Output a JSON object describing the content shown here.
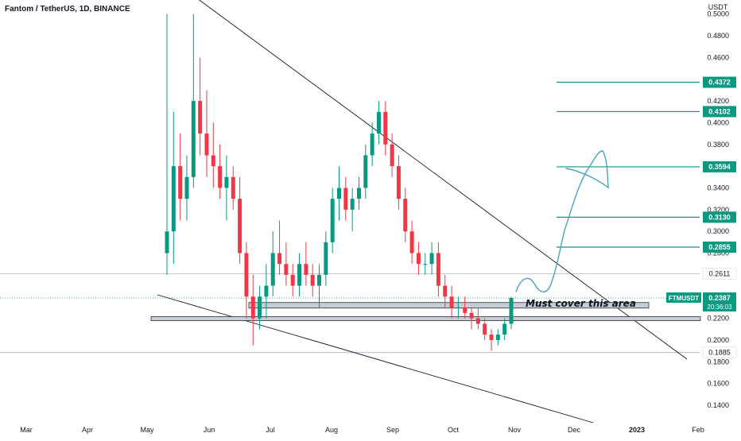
{
  "chart_data": {
    "type": "candlestick",
    "title": "Fantom / TetherUS, 1D, BINANCE",
    "currency": "USDT",
    "y_ticks": [
      "0.5000",
      "0.4800",
      "0.4600",
      "0.4200",
      "0.4000",
      "0.3800",
      "0.3400",
      "0.3200",
      "0.3000",
      "0.2800",
      "0.2200",
      "0.2000",
      "0.1800",
      "0.1600",
      "0.1400"
    ],
    "x_labels": [
      "Mar",
      "Apr",
      "May",
      "Jun",
      "Jul",
      "Aug",
      "Sep",
      "Oct",
      "Nov",
      "Dec",
      "2023",
      "Feb"
    ],
    "grid": false,
    "candles": [
      [
        0.28,
        0.5,
        0.26,
        0.3
      ],
      [
        0.3,
        0.41,
        0.27,
        0.36
      ],
      [
        0.36,
        0.39,
        0.31,
        0.33
      ],
      [
        0.33,
        0.37,
        0.31,
        0.35
      ],
      [
        0.35,
        0.5,
        0.34,
        0.42
      ],
      [
        0.42,
        0.46,
        0.37,
        0.39
      ],
      [
        0.39,
        0.43,
        0.35,
        0.37
      ],
      [
        0.37,
        0.4,
        0.34,
        0.36
      ],
      [
        0.36,
        0.38,
        0.33,
        0.34
      ],
      [
        0.34,
        0.37,
        0.31,
        0.35
      ],
      [
        0.35,
        0.36,
        0.32,
        0.33
      ],
      [
        0.33,
        0.35,
        0.27,
        0.28
      ],
      [
        0.28,
        0.29,
        0.22,
        0.24
      ],
      [
        0.24,
        0.26,
        0.195,
        0.22
      ],
      [
        0.22,
        0.25,
        0.21,
        0.24
      ],
      [
        0.24,
        0.27,
        0.22,
        0.25
      ],
      [
        0.25,
        0.3,
        0.24,
        0.28
      ],
      [
        0.28,
        0.31,
        0.26,
        0.27
      ],
      [
        0.27,
        0.29,
        0.25,
        0.26
      ],
      [
        0.26,
        0.27,
        0.24,
        0.25
      ],
      [
        0.25,
        0.28,
        0.24,
        0.27
      ],
      [
        0.27,
        0.29,
        0.25,
        0.26
      ],
      [
        0.26,
        0.27,
        0.24,
        0.25
      ],
      [
        0.25,
        0.27,
        0.23,
        0.26
      ],
      [
        0.26,
        0.3,
        0.25,
        0.29
      ],
      [
        0.29,
        0.34,
        0.28,
        0.33
      ],
      [
        0.33,
        0.36,
        0.31,
        0.34
      ],
      [
        0.34,
        0.35,
        0.31,
        0.32
      ],
      [
        0.32,
        0.34,
        0.3,
        0.33
      ],
      [
        0.33,
        0.35,
        0.32,
        0.34
      ],
      [
        0.34,
        0.38,
        0.33,
        0.37
      ],
      [
        0.37,
        0.4,
        0.36,
        0.39
      ],
      [
        0.39,
        0.42,
        0.38,
        0.41
      ],
      [
        0.41,
        0.42,
        0.37,
        0.38
      ],
      [
        0.38,
        0.39,
        0.35,
        0.36
      ],
      [
        0.36,
        0.37,
        0.32,
        0.33
      ],
      [
        0.33,
        0.34,
        0.29,
        0.3
      ],
      [
        0.3,
        0.31,
        0.27,
        0.28
      ],
      [
        0.28,
        0.29,
        0.26,
        0.27
      ],
      [
        0.27,
        0.28,
        0.26,
        0.27
      ],
      [
        0.27,
        0.29,
        0.26,
        0.28
      ],
      [
        0.28,
        0.29,
        0.24,
        0.25
      ],
      [
        0.25,
        0.26,
        0.23,
        0.24
      ],
      [
        0.24,
        0.25,
        0.22,
        0.23
      ],
      [
        0.23,
        0.24,
        0.22,
        0.23
      ],
      [
        0.23,
        0.24,
        0.22,
        0.225
      ],
      [
        0.225,
        0.23,
        0.21,
        0.22
      ],
      [
        0.22,
        0.23,
        0.21,
        0.215
      ],
      [
        0.215,
        0.22,
        0.2,
        0.205
      ],
      [
        0.205,
        0.21,
        0.19,
        0.2
      ],
      [
        0.2,
        0.21,
        0.195,
        0.205
      ],
      [
        0.205,
        0.22,
        0.2,
        0.215
      ],
      [
        0.215,
        0.24,
        0.21,
        0.2387
      ]
    ],
    "annotation": "Must cover this area",
    "levels": [
      {
        "price": "0.4372",
        "color": "#089981"
      },
      {
        "price": "0.4102",
        "color": "#089981"
      },
      {
        "price": "0.3594",
        "color": "#089981"
      },
      {
        "price": "0.3130",
        "color": "#089981"
      },
      {
        "price": "0.2855",
        "color": "#089981"
      }
    ],
    "horizontal_prices": [
      "0.2611",
      "0.1885"
    ],
    "last_price": {
      "symbol": "FTMUSDT",
      "price": "0.2387",
      "countdown": "20:36:03",
      "color": "#089981"
    },
    "colors": {
      "up": "#089981",
      "down": "#f23645",
      "zone_fill": "#c8ccd4",
      "projection": "#4aa3c0"
    }
  }
}
